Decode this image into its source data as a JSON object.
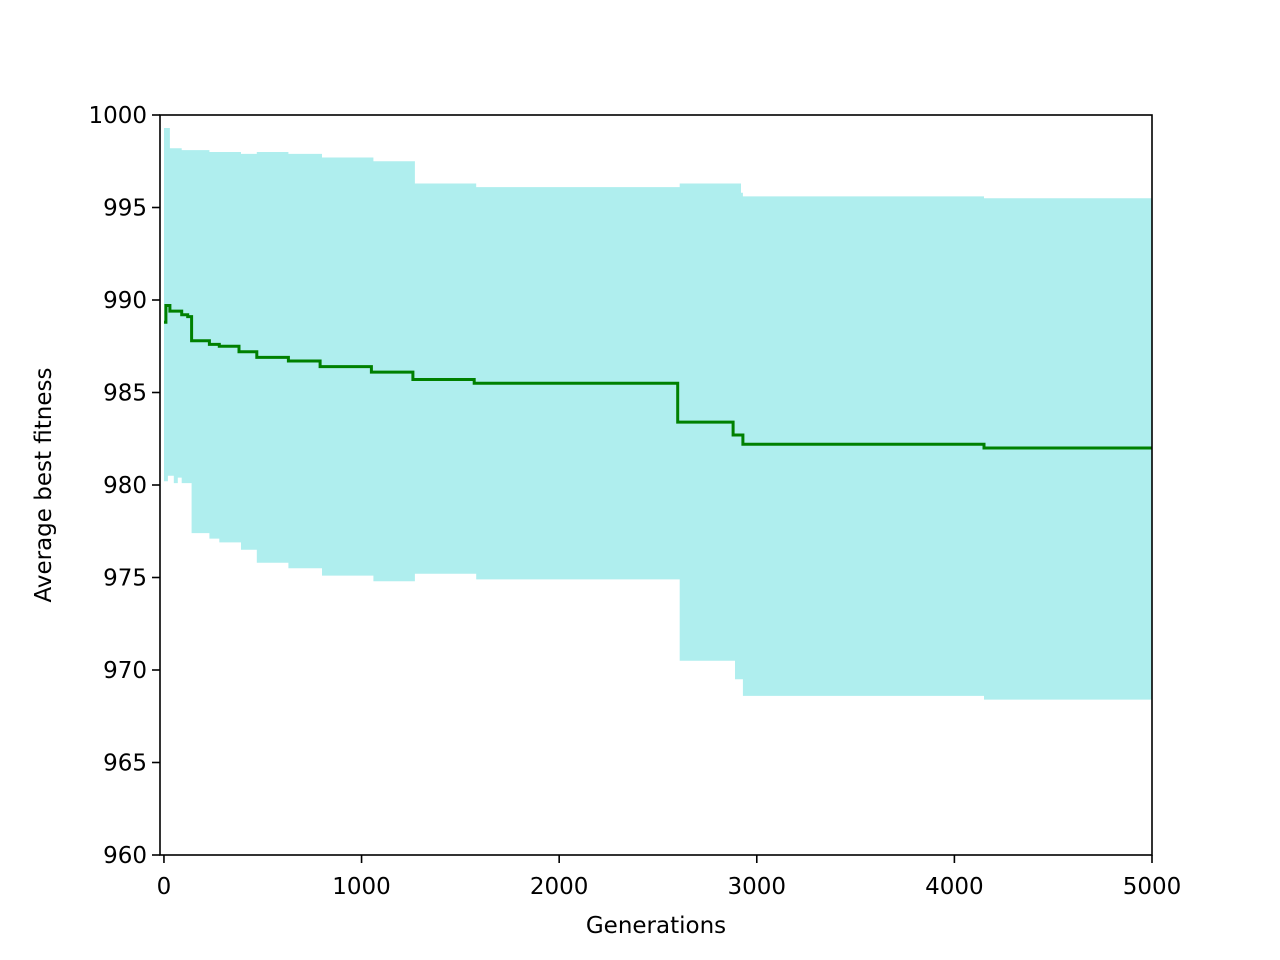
{
  "chart_data": {
    "type": "line",
    "title": "",
    "xlabel": "Generations",
    "ylabel": "Average best fitness",
    "xlim": [
      -20,
      5000
    ],
    "ylim": [
      960,
      1000
    ],
    "xticks": [
      0,
      1000,
      2000,
      3000,
      4000,
      5000
    ],
    "yticks": [
      960,
      965,
      970,
      975,
      980,
      985,
      990,
      995,
      1000
    ],
    "grid": false,
    "legend": "none",
    "band_color": "#afeeee",
    "line_color": "#008000",
    "series": [
      {
        "kind": "band",
        "x": [
          0,
          20,
          30,
          50,
          70,
          80,
          90,
          100,
          120,
          140,
          220,
          230,
          270,
          280,
          370,
          390,
          460,
          470,
          620,
          630,
          790,
          800,
          1050,
          1060,
          1260,
          1270,
          1570,
          1580,
          2600,
          2610,
          2880,
          2890,
          2920,
          2930,
          4140,
          4150,
          4420,
          4430,
          5000
        ],
        "lower": [
          980.2,
          980.5,
          980.5,
          980.1,
          980.4,
          980.4,
          980.1,
          980.1,
          980.1,
          977.4,
          977.4,
          977.1,
          977.1,
          976.9,
          976.9,
          976.5,
          976.5,
          975.8,
          975.8,
          975.5,
          975.5,
          975.1,
          975.1,
          974.8,
          974.8,
          975.2,
          975.2,
          974.9,
          974.9,
          970.5,
          970.5,
          969.5,
          969.5,
          968.6,
          968.6,
          968.4,
          968.4,
          968.4,
          968.4
        ],
        "upper": [
          999.3,
          999.3,
          998.2,
          998.2,
          998.2,
          998.2,
          998.1,
          998.1,
          998.1,
          998.1,
          998.1,
          998.0,
          998.0,
          998.0,
          998.0,
          997.9,
          997.9,
          998.0,
          998.0,
          997.9,
          997.9,
          997.7,
          997.7,
          997.5,
          997.5,
          996.3,
          996.3,
          996.1,
          996.1,
          996.3,
          996.3,
          996.3,
          995.8,
          995.6,
          995.6,
          995.5,
          995.5,
          995.5,
          995.5
        ]
      },
      {
        "kind": "line",
        "x": [
          0,
          10,
          20,
          30,
          80,
          90,
          100,
          120,
          130,
          140,
          220,
          230,
          270,
          280,
          370,
          380,
          460,
          470,
          620,
          630,
          780,
          790,
          1040,
          1050,
          1250,
          1260,
          1560,
          1570,
          2590,
          2600,
          2870,
          2880,
          2920,
          2930,
          4140,
          4150,
          4410,
          4420,
          5000
        ],
        "y": [
          988.8,
          989.7,
          989.7,
          989.4,
          989.4,
          989.2,
          989.2,
          989.1,
          989.1,
          987.8,
          987.8,
          987.6,
          987.6,
          987.5,
          987.5,
          987.2,
          987.2,
          986.9,
          986.9,
          986.7,
          986.7,
          986.4,
          986.4,
          986.1,
          986.1,
          985.7,
          985.7,
          985.5,
          985.5,
          983.4,
          983.4,
          982.7,
          982.7,
          982.2,
          982.2,
          982.0,
          982.0,
          982.0,
          982.0
        ]
      }
    ]
  }
}
